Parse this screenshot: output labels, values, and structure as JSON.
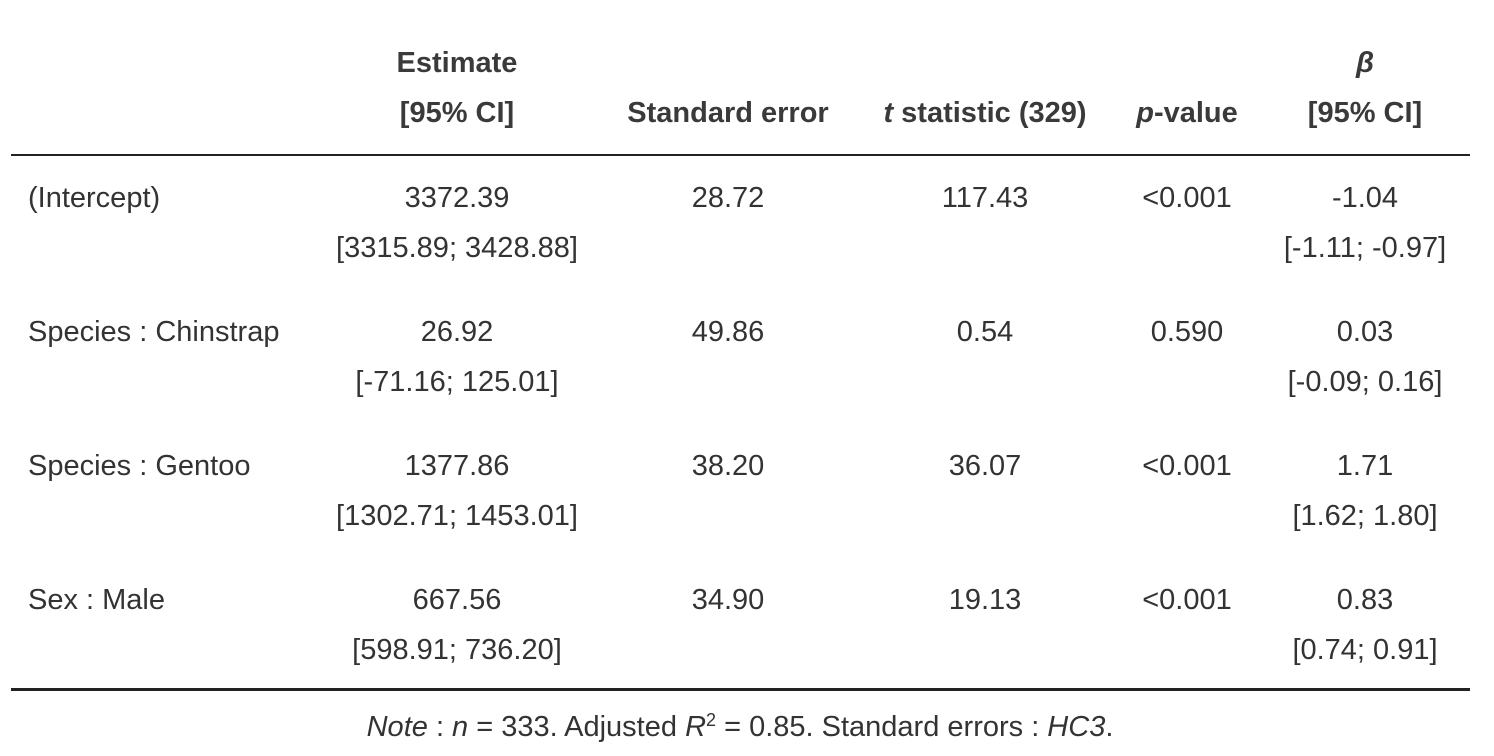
{
  "header": {
    "columns": [
      {
        "lines": [
          [
            {
              "text": "Estimate"
            }
          ],
          [
            {
              "text": "[95% CI]"
            }
          ]
        ]
      },
      {
        "lines": [
          [
            {
              "text": "Standard error"
            }
          ]
        ]
      },
      {
        "lines": [
          [
            {
              "text": "t",
              "italic": true
            },
            {
              "text": " statistic (329)"
            }
          ]
        ]
      },
      {
        "lines": [
          [
            {
              "text": "p",
              "italic": true
            },
            {
              "text": "-value"
            }
          ]
        ]
      },
      {
        "lines": [
          [
            {
              "text": "β",
              "italic": true
            }
          ],
          [
            {
              "text": "[95% CI]"
            }
          ]
        ]
      }
    ]
  },
  "table": {
    "rows": [
      {
        "term": "(Intercept)",
        "estimate": "3372.39",
        "estimate_ci": "[3315.89; 3428.88]",
        "se": "28.72",
        "t": "117.43",
        "p": "<0.001",
        "beta": "-1.04",
        "beta_ci": "[-1.11; -0.97]"
      },
      {
        "term": "Species : Chinstrap",
        "estimate": "26.92",
        "estimate_ci": "[-71.16; 125.01]",
        "se": "49.86",
        "t": "0.54",
        "p": "0.590",
        "beta": "0.03",
        "beta_ci": "[-0.09; 0.16]"
      },
      {
        "term": "Species : Gentoo",
        "estimate": "1377.86",
        "estimate_ci": "[1302.71; 1453.01]",
        "se": "38.20",
        "t": "36.07",
        "p": "<0.001",
        "beta": "1.71",
        "beta_ci": "[1.62; 1.80]"
      },
      {
        "term": "Sex : Male",
        "estimate": "667.56",
        "estimate_ci": "[598.91; 736.20]",
        "se": "34.90",
        "t": "19.13",
        "p": "<0.001",
        "beta": "0.83",
        "beta_ci": "[0.74; 0.91]"
      }
    ]
  },
  "note": [
    {
      "text": "Note",
      "italic": true
    },
    {
      "text": " : "
    },
    {
      "text": "n",
      "italic": true
    },
    {
      "text": " = 333. Adjusted "
    },
    {
      "text": "R",
      "italic": true
    },
    {
      "text": "2",
      "sup": true
    },
    {
      "text": " = 0.85. Standard errors : "
    },
    {
      "text": "HC3",
      "italic": true
    },
    {
      "text": "."
    }
  ]
}
